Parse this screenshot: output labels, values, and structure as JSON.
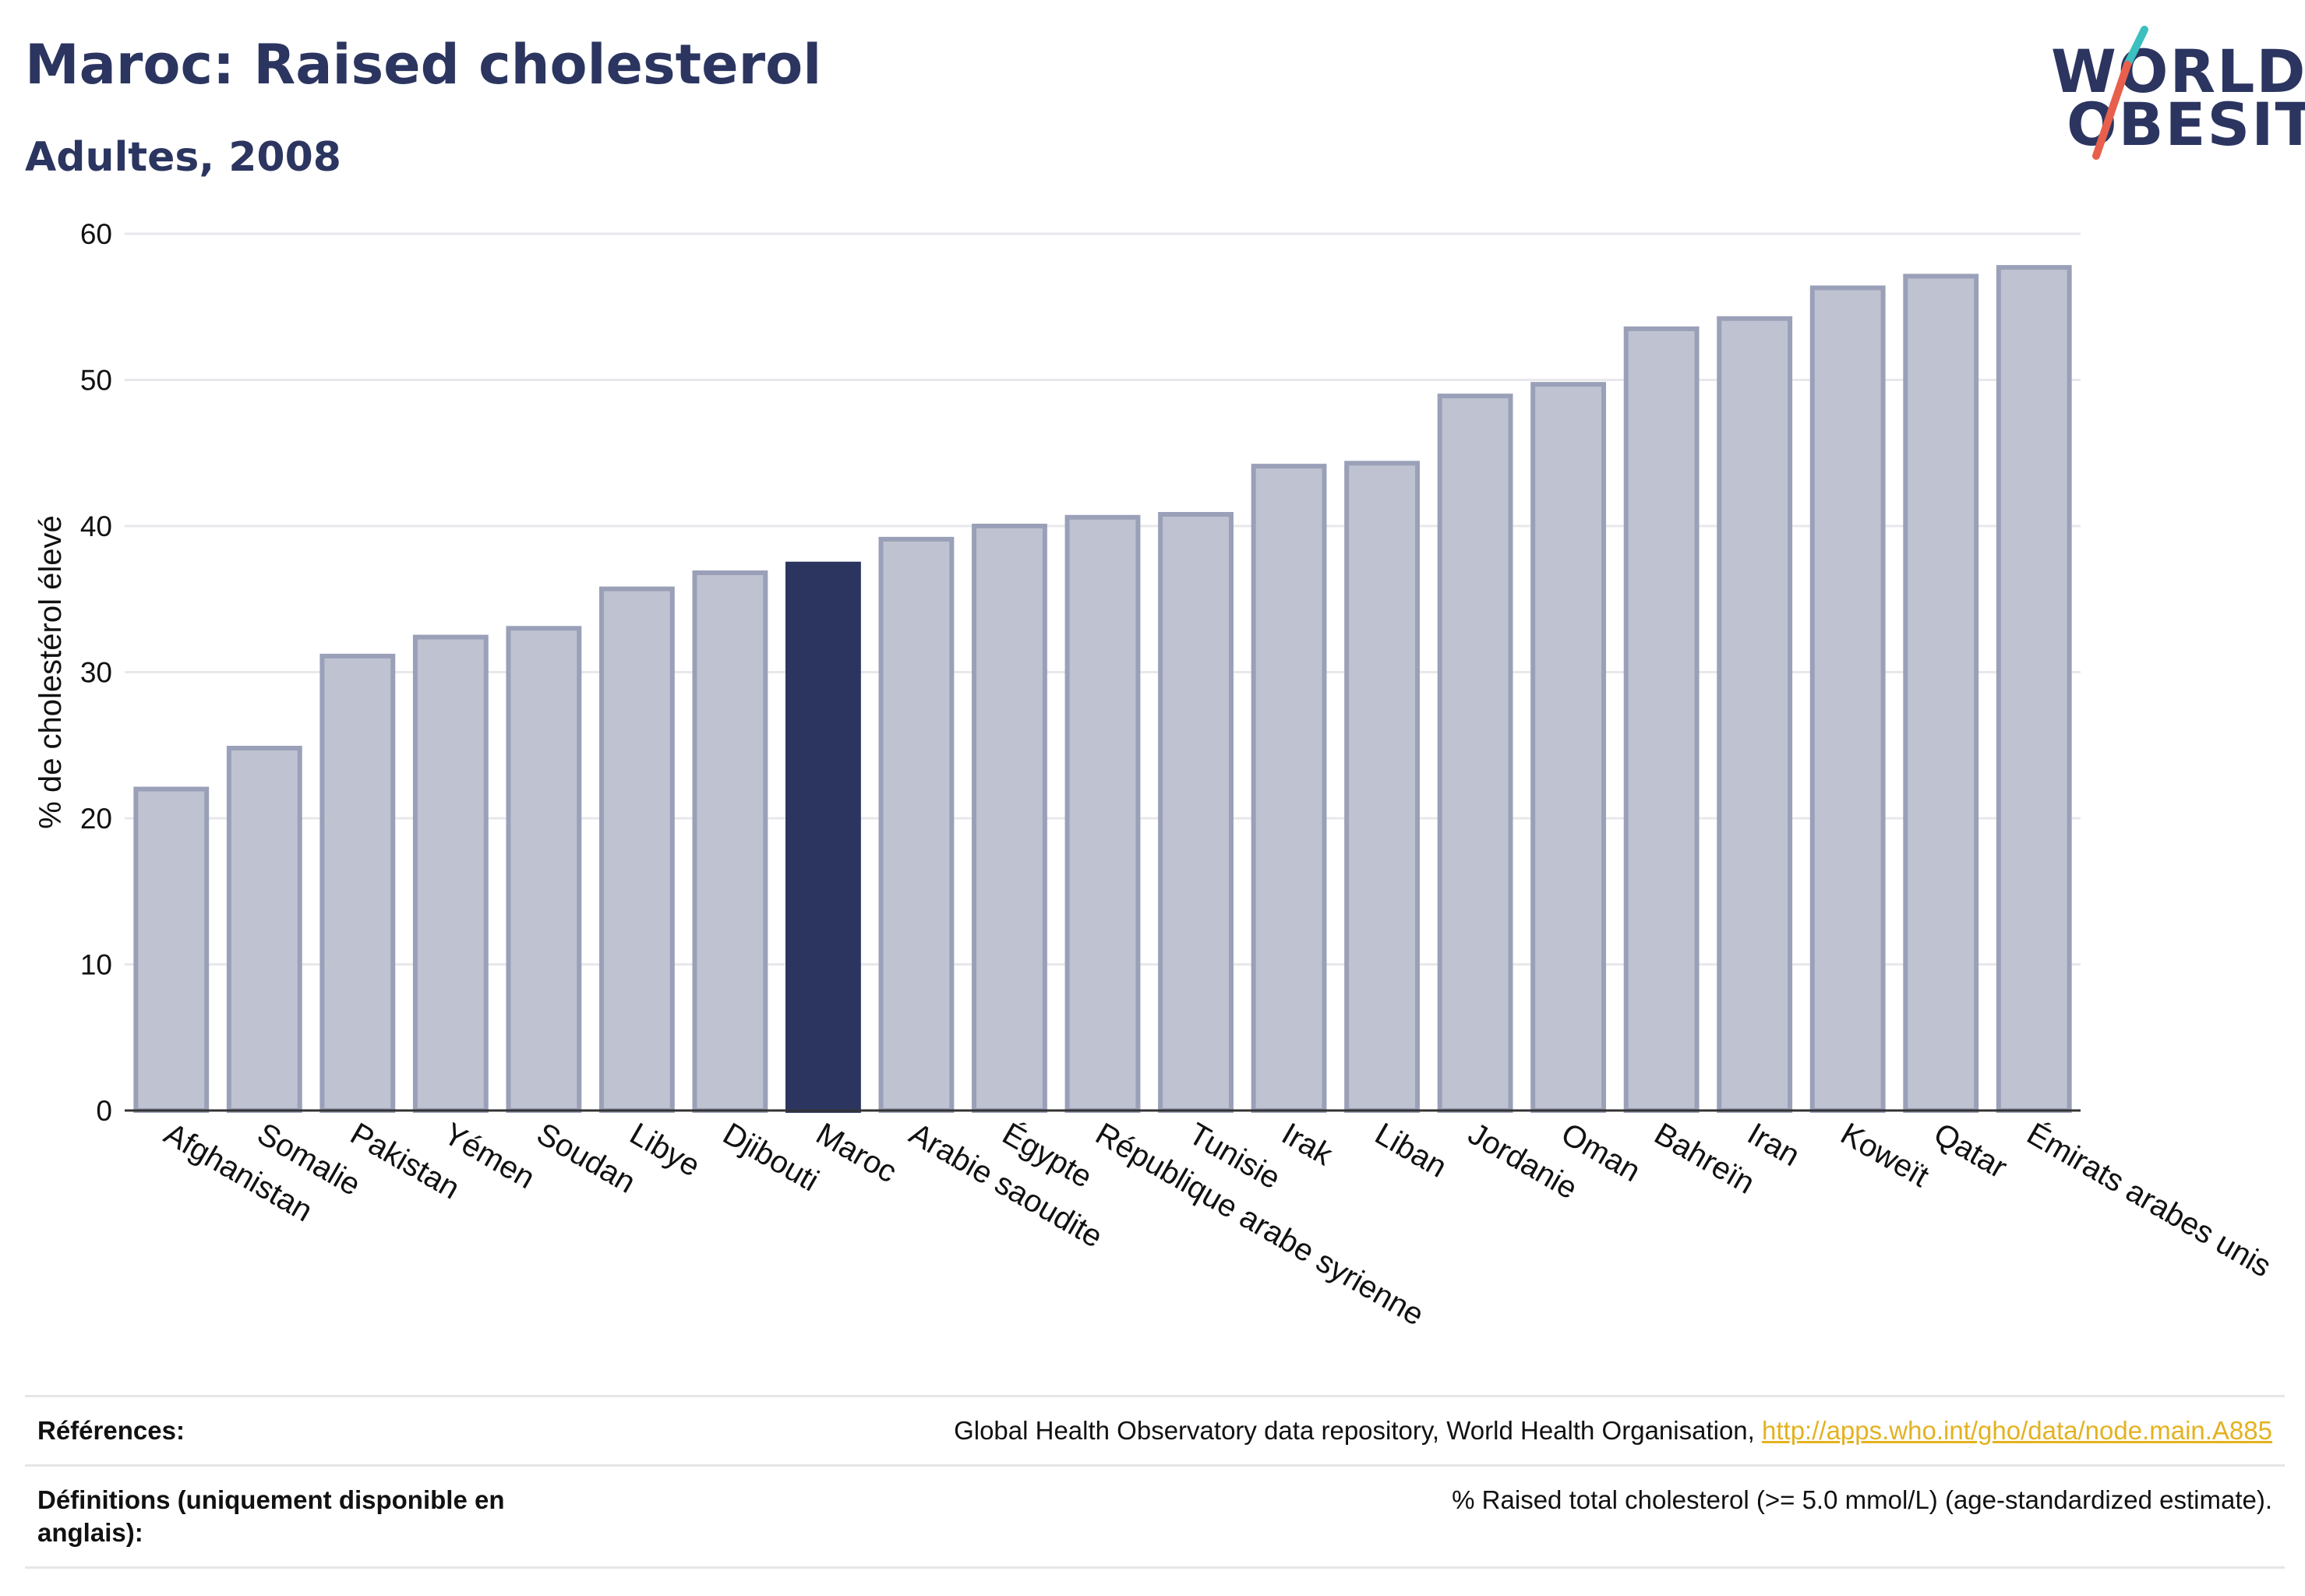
{
  "header": {
    "title": "Maroc: Raised cholesterol",
    "subtitle": "Adultes, 2008"
  },
  "logo": {
    "line1": "WORLD",
    "line2": "OBESITY",
    "colors": [
      "#2b3560",
      "#3cbfbf",
      "#e8604c"
    ]
  },
  "chart_data": {
    "type": "bar",
    "ylabel": "% de cholestérol élevé",
    "ylim": [
      0,
      60
    ],
    "yticks": [
      0,
      10,
      20,
      30,
      40,
      50,
      60
    ],
    "grid": true,
    "highlight": "Maroc",
    "colors": {
      "bar": "#bfc2d0",
      "bar_border": "#9aa0b8",
      "highlight": "#2b3560",
      "grid": "#e8e8ec",
      "axis": "#333333"
    },
    "categories": [
      "Afghanistan",
      "Somalie",
      "Pakistan",
      "Yémen",
      "Soudan",
      "Libye",
      "Djibouti",
      "Maroc",
      "Arabie saoudite",
      "Égypte",
      "République arabe syrienne",
      "Tunisie",
      "Irak",
      "Liban",
      "Jordanie",
      "Oman",
      "Bahreïn",
      "Iran",
      "Koweït",
      "Qatar",
      "Émirats arabes unis"
    ],
    "values": [
      22.0,
      24.8,
      31.1,
      32.4,
      33.0,
      35.7,
      36.8,
      37.4,
      39.1,
      40.0,
      40.6,
      40.8,
      44.1,
      44.3,
      48.9,
      49.7,
      53.5,
      54.2,
      56.3,
      57.1,
      57.7
    ]
  },
  "references": {
    "label": "Références:",
    "text": "Global Health Observatory data repository, World Health Organisation, ",
    "link": "http://apps.who.int/gho/data/node.main.A885"
  },
  "definitions": {
    "label": "Définitions (uniquement disponible en anglais):",
    "text": "% Raised total cholesterol (>= 5.0 mmol/L) (age-standardized estimate)."
  }
}
